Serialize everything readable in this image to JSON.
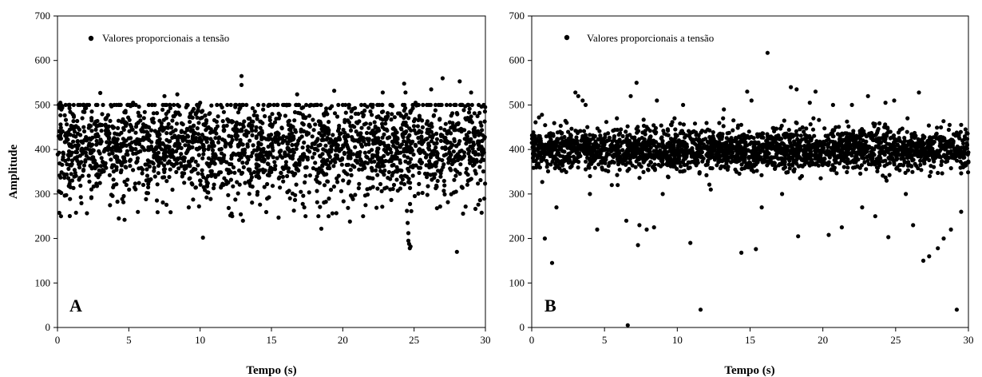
{
  "chart_data": [
    {
      "type": "scatter",
      "panel_label": "A",
      "xlabel": "Tempo (s)",
      "ylabel": "Amplitude",
      "xlim": [
        0,
        30
      ],
      "ylim": [
        0,
        700
      ],
      "xticks": [
        0,
        5,
        10,
        15,
        20,
        25,
        30
      ],
      "yticks": [
        0,
        100,
        200,
        300,
        400,
        500,
        600,
        700
      ],
      "grid": false,
      "legend_position": "top-left",
      "marker_color": "#000000",
      "series": [
        {
          "name": "Valores proporcionais a tensão",
          "points": [
            [
              0.2,
              505
            ],
            [
              1.3,
              258
            ],
            [
              2.0,
              493
            ],
            [
              3.0,
              527
            ],
            [
              4.3,
              245
            ],
            [
              4.7,
              242
            ],
            [
              5.3,
              505
            ],
            [
              7.5,
              520
            ],
            [
              8.4,
              524
            ],
            [
              10.2,
              202
            ],
            [
              10.0,
              505
            ],
            [
              12.9,
              565
            ],
            [
              12.9,
              545
            ],
            [
              13.0,
              240
            ],
            [
              15.5,
              247
            ],
            [
              16.8,
              524
            ],
            [
              18.5,
              222
            ],
            [
              19.4,
              532
            ],
            [
              20.5,
              238
            ],
            [
              22.8,
              528
            ],
            [
              24.3,
              548
            ],
            [
              24.4,
              528
            ],
            [
              24.5,
              262
            ],
            [
              24.55,
              235
            ],
            [
              24.6,
              212
            ],
            [
              24.6,
              195
            ],
            [
              24.65,
              188
            ],
            [
              24.7,
              178
            ],
            [
              24.75,
              182
            ],
            [
              25.1,
              505
            ],
            [
              26.2,
              535
            ],
            [
              27.0,
              560
            ],
            [
              28.0,
              170
            ],
            [
              28.2,
              553
            ],
            [
              29.0,
              528
            ],
            [
              9.2,
              270
            ],
            [
              14.2,
              276
            ],
            [
              17.3,
              270
            ],
            [
              21.6,
              275
            ],
            [
              26.6,
              268
            ],
            [
              29.5,
              276
            ]
          ],
          "bulk": {
            "count": 2300,
            "x_range": [
              0,
              30
            ],
            "center": 405,
            "spread": 58,
            "min": 250,
            "max": 500
          }
        }
      ]
    },
    {
      "type": "scatter",
      "panel_label": "B",
      "xlabel": "Tempo (s)",
      "ylabel": "",
      "xlim": [
        0,
        30
      ],
      "ylim": [
        0,
        700
      ],
      "xticks": [
        0,
        5,
        10,
        15,
        20,
        25,
        30
      ],
      "yticks": [
        0,
        100,
        200,
        300,
        400,
        500,
        600,
        700
      ],
      "grid": false,
      "legend_position": "top-left",
      "marker_color": "#000000",
      "series": [
        {
          "name": "Valores proporcionais a tensão",
          "points": [
            [
              0.5,
              472
            ],
            [
              0.7,
              478
            ],
            [
              0.9,
              200
            ],
            [
              1.4,
              145
            ],
            [
              1.7,
              270
            ],
            [
              2.4,
              460
            ],
            [
              3.0,
              528
            ],
            [
              3.2,
              520
            ],
            [
              3.5,
              510
            ],
            [
              3.7,
              500
            ],
            [
              4.0,
              300
            ],
            [
              4.5,
              220
            ],
            [
              5.5,
              320
            ],
            [
              6.5,
              240
            ],
            [
              6.6,
              5
            ],
            [
              6.8,
              520
            ],
            [
              7.2,
              550
            ],
            [
              7.3,
              185
            ],
            [
              7.4,
              230
            ],
            [
              7.9,
              220
            ],
            [
              8.4,
              225
            ],
            [
              8.6,
              510
            ],
            [
              9.0,
              300
            ],
            [
              10.4,
              500
            ],
            [
              10.9,
              190
            ],
            [
              11.6,
              40
            ],
            [
              12.3,
              310
            ],
            [
              13.2,
              490
            ],
            [
              14.4,
              168
            ],
            [
              14.8,
              530
            ],
            [
              15.1,
              510
            ],
            [
              15.4,
              176
            ],
            [
              15.8,
              270
            ],
            [
              16.2,
              617
            ],
            [
              17.2,
              300
            ],
            [
              17.8,
              540
            ],
            [
              18.2,
              535
            ],
            [
              18.3,
              205
            ],
            [
              19.1,
              505
            ],
            [
              19.5,
              530
            ],
            [
              20.4,
              208
            ],
            [
              20.7,
              500
            ],
            [
              21.3,
              225
            ],
            [
              22.0,
              500
            ],
            [
              22.7,
              270
            ],
            [
              23.1,
              520
            ],
            [
              23.6,
              250
            ],
            [
              24.3,
              505
            ],
            [
              24.5,
              203
            ],
            [
              24.9,
              510
            ],
            [
              25.7,
              300
            ],
            [
              26.2,
              230
            ],
            [
              26.6,
              528
            ],
            [
              26.9,
              150
            ],
            [
              27.3,
              160
            ],
            [
              27.9,
              178
            ],
            [
              28.3,
              200
            ],
            [
              28.8,
              220
            ],
            [
              29.2,
              40
            ],
            [
              29.5,
              260
            ]
          ],
          "bulk": {
            "count": 2500,
            "x_range": [
              0,
              30
            ],
            "center": 400,
            "spread": 24,
            "min": 320,
            "max": 470
          }
        }
      ]
    }
  ]
}
